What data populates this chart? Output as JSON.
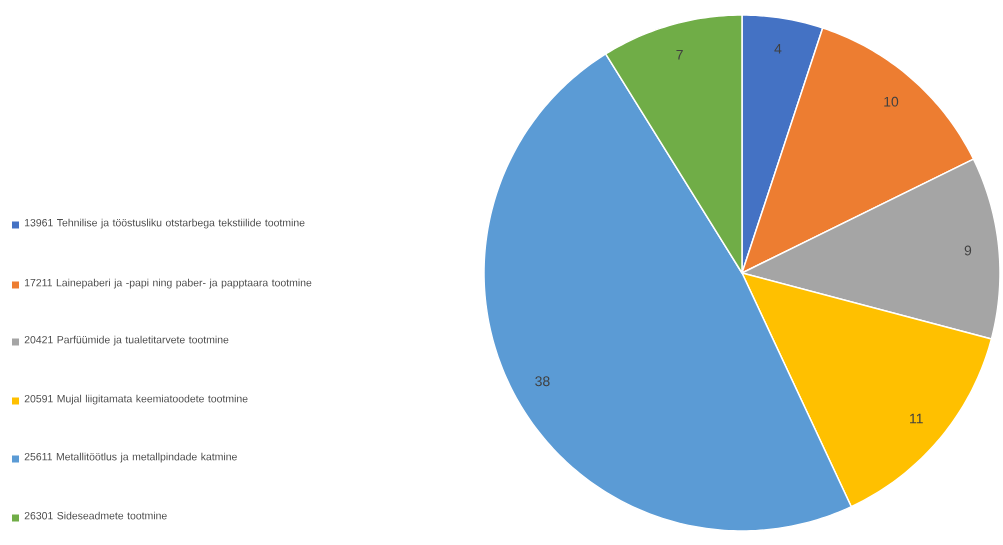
{
  "chart_data": {
    "type": "pie",
    "categories": [
      "13961 Tehnilise ja tööstusliku otstarbega tekstiilide tootmine",
      "17211 Lainepaberi ja -papi ning paber- ja papptaara tootmine",
      "20421 Parfüümide ja tualetitarvete tootmine",
      "20591 Mujal liigitamata keemiatoodete tootmine",
      "25611 Metallitöötlus ja metallpindade katmine",
      "26301 Sideseadmete tootmine"
    ],
    "values": [
      4,
      10,
      9,
      11,
      38,
      7
    ],
    "colors": [
      "#4472c4",
      "#ed7d31",
      "#a5a5a5",
      "#ffc000",
      "#5b9bd5",
      "#70ad47"
    ],
    "data_labels": true,
    "legend": "left"
  }
}
